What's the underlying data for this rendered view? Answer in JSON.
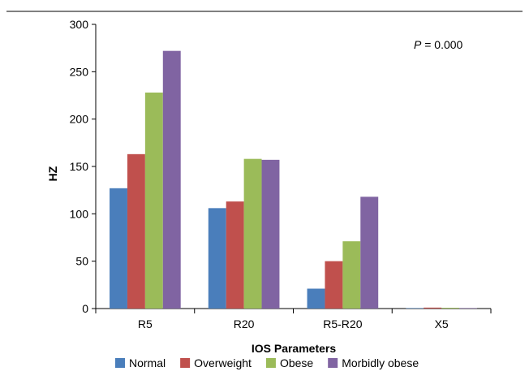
{
  "chart_data": {
    "type": "bar",
    "categories": [
      "R5",
      "R20",
      "R5-R20",
      "X5"
    ],
    "series": [
      {
        "name": "Normal",
        "color": "#4a7ebb",
        "values": [
          127,
          106,
          21,
          0.5
        ]
      },
      {
        "name": "Overweight",
        "color": "#c0504d",
        "values": [
          163,
          113,
          50,
          1
        ]
      },
      {
        "name": "Obese",
        "color": "#9bbb59",
        "values": [
          228,
          158,
          71,
          0.8
        ]
      },
      {
        "name": "Morbidly obese",
        "color": "#8064a2",
        "values": [
          272,
          157,
          118,
          0.5
        ]
      }
    ],
    "title": "",
    "xlabel": "IOS Parameters",
    "ylabel": "HZ",
    "ylim": [
      0,
      300
    ],
    "yticks": [
      0,
      50,
      100,
      150,
      200,
      250,
      300
    ],
    "annotation": {
      "prefix": "P",
      "rest": " = 0.000"
    },
    "legend_position": "bottom",
    "grid": false
  }
}
